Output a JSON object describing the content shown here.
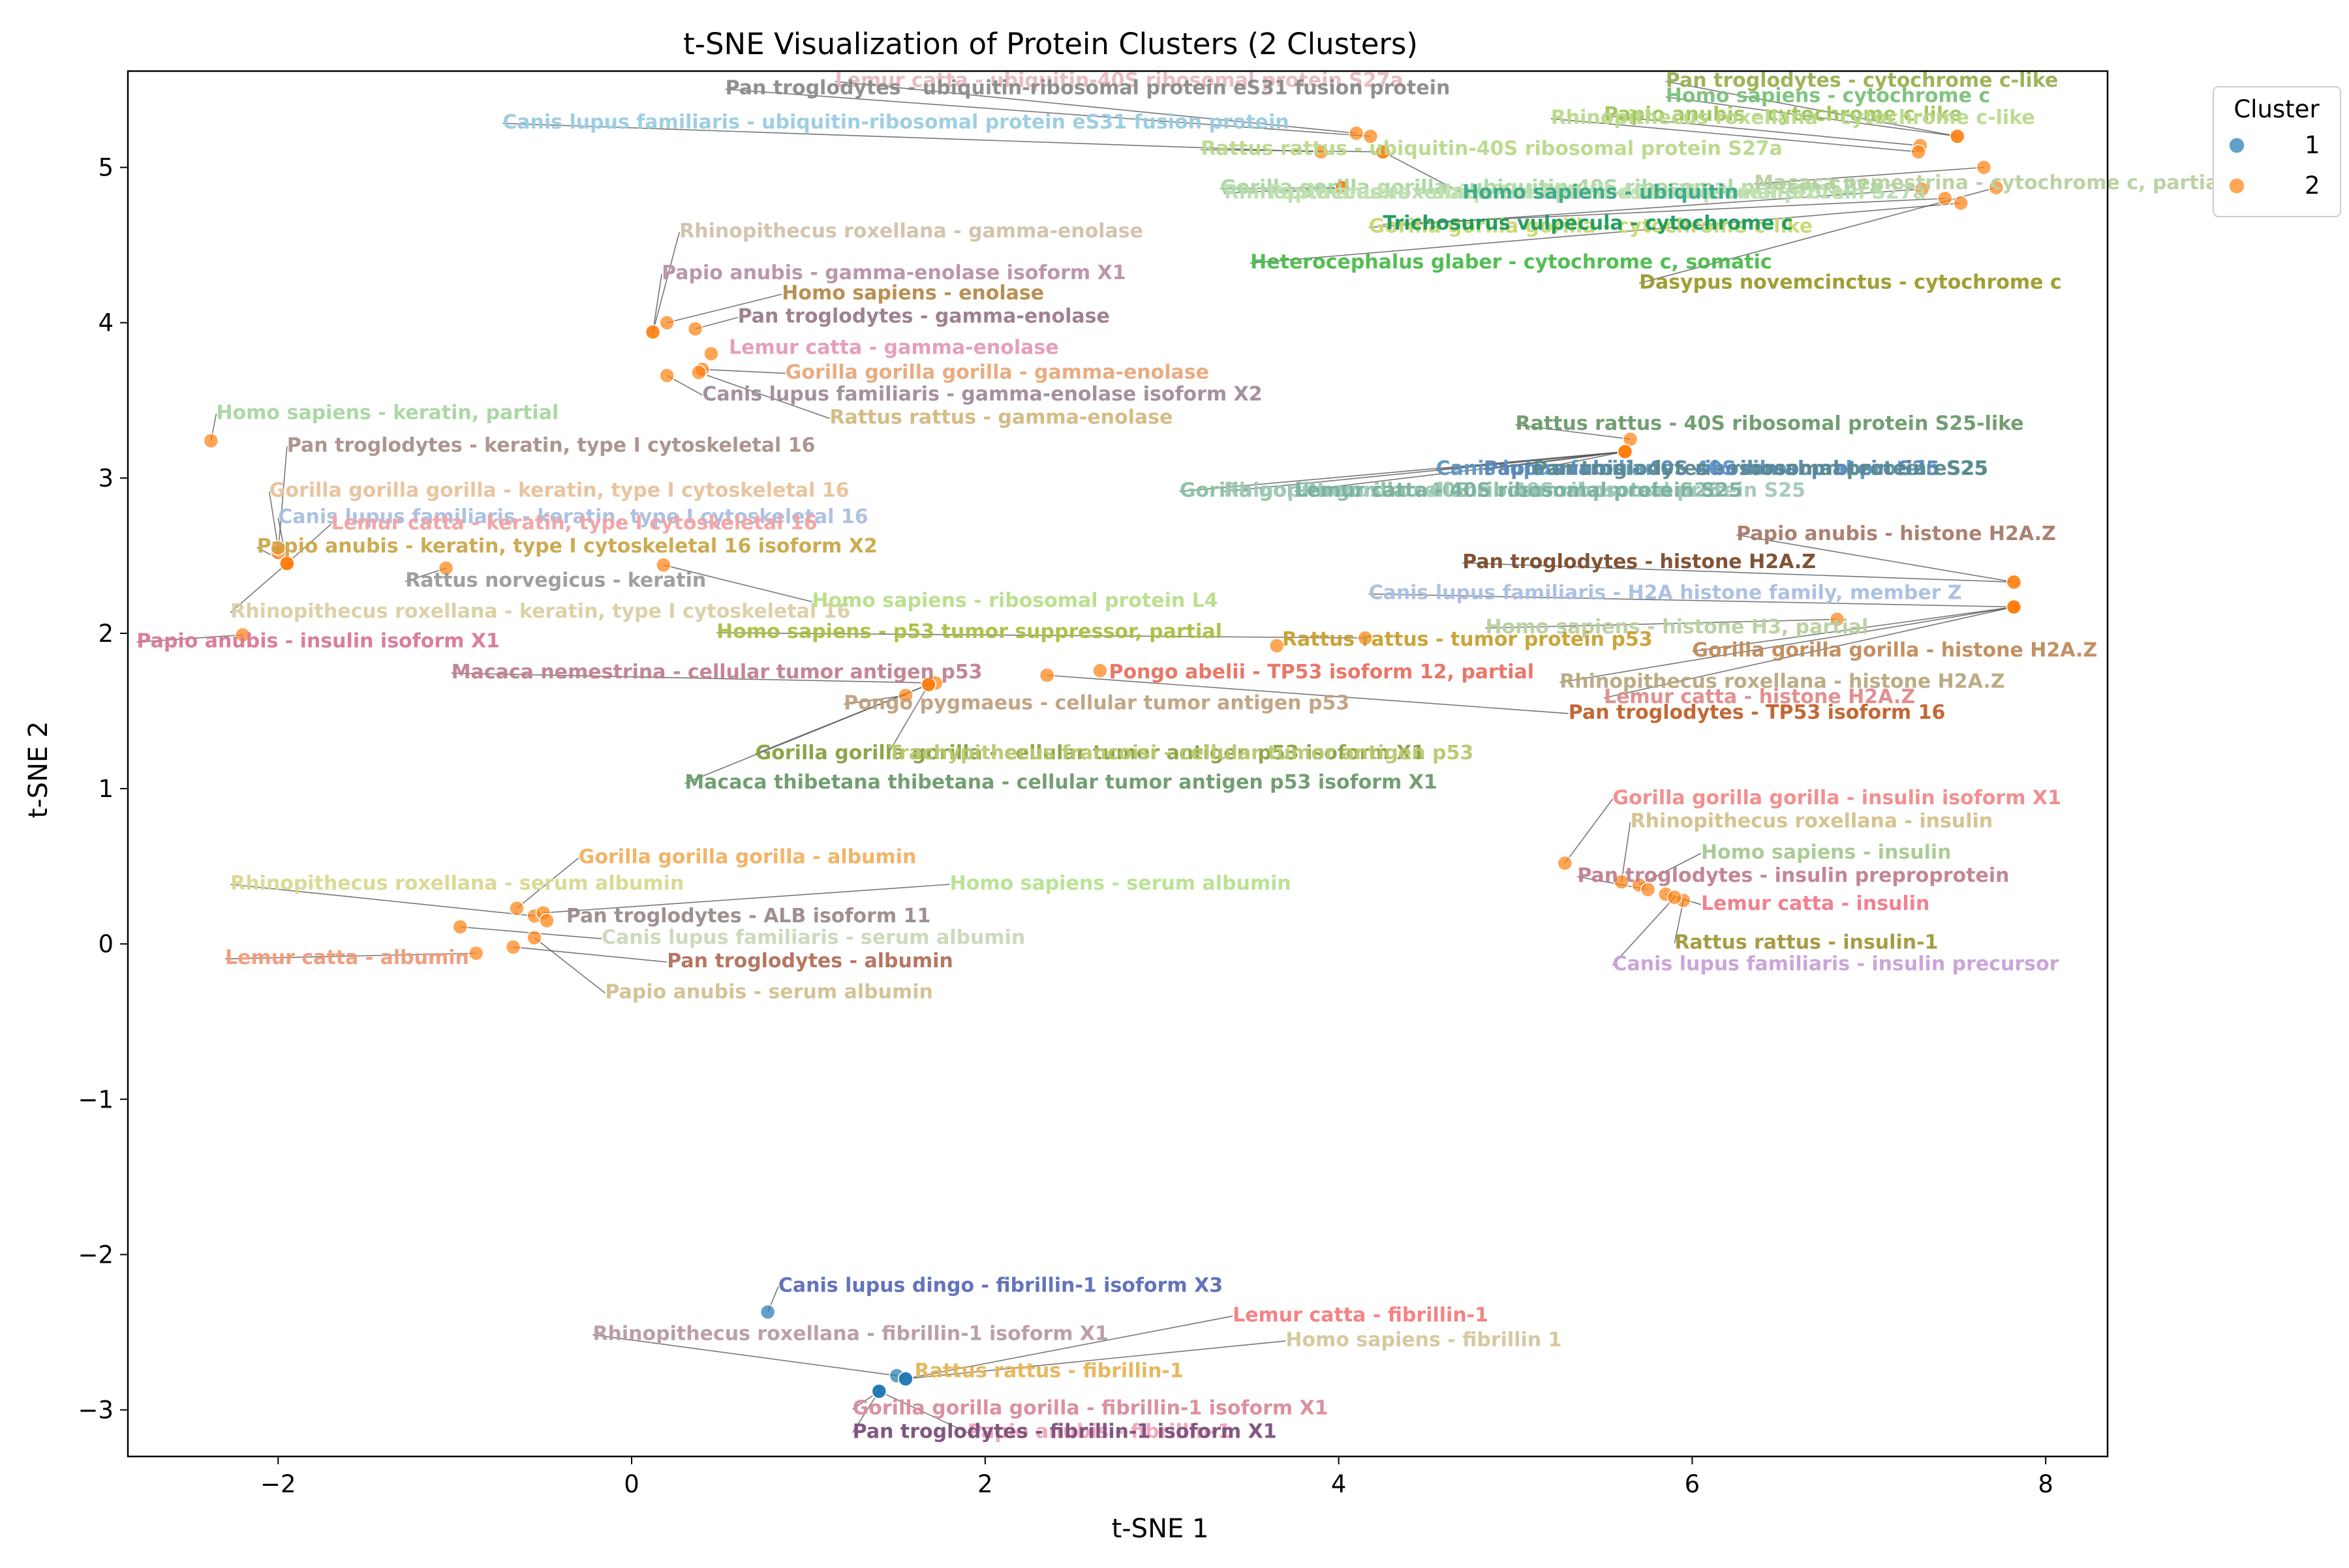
{
  "chart_data": {
    "type": "scatter",
    "title": "t-SNE Visualization of Protein Clusters (2 Clusters)",
    "xlabel": "t-SNE 1",
    "ylabel": "t-SNE 2",
    "xlim": [
      -2.85,
      8.35
    ],
    "ylim": [
      -3.3,
      5.62
    ],
    "xticks": [
      -2,
      0,
      2,
      4,
      6,
      8
    ],
    "yticks": [
      -3,
      -2,
      -1,
      0,
      1,
      2,
      3,
      4,
      5
    ],
    "grid": false,
    "legend": {
      "title": "Cluster",
      "placement": "outside-top-right",
      "entries": [
        {
          "label": "1",
          "color": "#1f77b4"
        },
        {
          "label": "2",
          "color": "#ff7f0e"
        }
      ]
    },
    "colors": {
      "cluster_1": "#1f77b4",
      "cluster_2": "#ff7f0e",
      "leader": "#555555"
    },
    "points": [
      {
        "label": "Canis lupus dingo - fibrillin-1 isoform X3",
        "cluster": 1,
        "x": 0.77,
        "y": -2.37,
        "lx": 0.83,
        "ly": -2.24,
        "color": "#5b6bb8"
      },
      {
        "label": "Rhinopithecus roxellana - fibrillin-1 isoform X1",
        "cluster": 1,
        "x": 1.5,
        "y": -2.78,
        "lx": -0.22,
        "ly": -2.55,
        "color": "#b89aa0"
      },
      {
        "label": "Lemur catta - fibrillin-1",
        "cluster": 1,
        "x": 1.55,
        "y": -2.8,
        "lx": 3.4,
        "ly": -2.43,
        "color": "#f47c7c"
      },
      {
        "label": "Homo sapiens - fibrillin 1",
        "cluster": 1,
        "x": 1.55,
        "y": -2.8,
        "lx": 3.7,
        "ly": -2.59,
        "color": "#d3c79a"
      },
      {
        "label": "Rattus rattus - fibrillin-1",
        "cluster": 1,
        "x": 1.55,
        "y": -2.8,
        "lx": 1.6,
        "ly": -2.79,
        "color": "#e5b556"
      },
      {
        "label": "Gorilla gorilla gorilla - fibrillin-1 isoform X1",
        "cluster": 1,
        "x": 1.4,
        "y": -2.88,
        "lx": 1.25,
        "ly": -3.03,
        "color": "#d98b9a"
      },
      {
        "label": "Papio anubis - fibrillin-1",
        "cluster": 1,
        "x": 1.4,
        "y": -2.88,
        "lx": 1.9,
        "ly": -3.18,
        "color": "#f2a2b8"
      },
      {
        "label": "Pan troglodytes - fibrillin-1 isoform X1",
        "cluster": 1,
        "x": 1.4,
        "y": -2.88,
        "lx": 1.25,
        "ly": -3.18,
        "color": "#7a4e7a"
      },
      {
        "label": "Homo sapiens - keratin, partial",
        "cluster": 2,
        "x": -2.38,
        "y": 3.24,
        "lx": -2.35,
        "ly": 3.38,
        "color": "#a6d6a0"
      },
      {
        "label": "Pan troglodytes - keratin, type I cytoskeletal 16",
        "cluster": 2,
        "x": -2.0,
        "y": 2.52,
        "lx": -1.95,
        "ly": 3.17,
        "color": "#a98f8a"
      },
      {
        "label": "Gorilla gorilla gorilla - keratin, type I cytoskeletal 16",
        "cluster": 2,
        "x": -2.0,
        "y": 2.55,
        "lx": -2.05,
        "ly": 2.88,
        "color": "#e8c19a"
      },
      {
        "label": "Canis lupus familiaris - keratin, type I cytoskeletal 16",
        "cluster": 2,
        "x": -1.95,
        "y": 2.45,
        "lx": -2.0,
        "ly": 2.71,
        "color": "#a9bfe0"
      },
      {
        "label": "Lemur catta - keratin, type I cytoskeletal 16",
        "cluster": 2,
        "x": -1.95,
        "y": 2.45,
        "lx": -1.7,
        "ly": 2.67,
        "color": "#f2a2a2"
      },
      {
        "label": "Papio anubis - keratin, type I cytoskeletal 16 isoform X2",
        "cluster": 2,
        "x": -1.95,
        "y": 2.45,
        "lx": -2.12,
        "ly": 2.52,
        "color": "#c8a84a"
      },
      {
        "label": "Rattus norvegicus - keratin",
        "cluster": 2,
        "x": -1.05,
        "y": 2.42,
        "lx": -1.28,
        "ly": 2.3,
        "color": "#9a9a9a"
      },
      {
        "label": "Rhinopithecus roxellana - keratin, type I cytoskeletal 16",
        "cluster": 2,
        "x": -1.95,
        "y": 2.45,
        "lx": -2.27,
        "ly": 2.1,
        "color": "#d9cfa2"
      },
      {
        "label": "Papio anubis - insulin isoform X1",
        "cluster": 2,
        "x": -2.2,
        "y": 1.99,
        "lx": -2.8,
        "ly": 1.91,
        "color": "#d9769a"
      },
      {
        "label": "Homo sapiens - ribosomal protein L4",
        "cluster": 2,
        "x": 0.18,
        "y": 2.44,
        "lx": 1.02,
        "ly": 2.17,
        "color": "#b7de8a"
      },
      {
        "label": "Rhinopithecus roxellana - gamma-enolase",
        "cluster": 2,
        "x": 0.12,
        "y": 3.94,
        "lx": 0.27,
        "ly": 4.55,
        "color": "#d2c1a8"
      },
      {
        "label": "Papio anubis - gamma-enolase isoform X1",
        "cluster": 2,
        "x": 0.12,
        "y": 3.94,
        "lx": 0.17,
        "ly": 4.28,
        "color": "#b890a8"
      },
      {
        "label": "Homo sapiens - enolase",
        "cluster": 2,
        "x": 0.2,
        "y": 4.0,
        "lx": 0.85,
        "ly": 4.15,
        "color": "#b58a4a"
      },
      {
        "label": "Pan troglodytes - gamma-enolase",
        "cluster": 2,
        "x": 0.36,
        "y": 3.96,
        "lx": 0.6,
        "ly": 4.0,
        "color": "#9a7a8a"
      },
      {
        "label": "Lemur catta - gamma-enolase",
        "cluster": 2,
        "x": 0.45,
        "y": 3.8,
        "lx": 0.55,
        "ly": 3.8,
        "color": "#e39ab8"
      },
      {
        "label": "Gorilla gorilla gorilla - gamma-enolase",
        "cluster": 2,
        "x": 0.4,
        "y": 3.7,
        "lx": 0.87,
        "ly": 3.64,
        "color": "#e8a87a"
      },
      {
        "label": "Canis lupus familiaris - gamma-enolase isoform X2",
        "cluster": 2,
        "x": 0.2,
        "y": 3.66,
        "lx": 0.4,
        "ly": 3.5,
        "color": "#a08a9a"
      },
      {
        "label": "Rattus rattus - gamma-enolase",
        "cluster": 2,
        "x": 0.38,
        "y": 3.68,
        "lx": 1.12,
        "ly": 3.35,
        "color": "#d2b880"
      },
      {
        "label": "Lemur catta - ubiquitin-40S ribosomal protein S27a",
        "cluster": 2,
        "x": 4.1,
        "y": 5.22,
        "lx": 1.15,
        "ly": 5.52,
        "color": "#e8b8c0"
      },
      {
        "label": "Pan troglodytes - ubiquitin-ribosomal protein eS31 fusion protein",
        "cluster": 2,
        "x": 4.18,
        "y": 5.2,
        "lx": 0.53,
        "ly": 5.47,
        "color": "#8a8a8a"
      },
      {
        "label": "Canis lupus familiaris - ubiquitin-ribosomal protein eS31 fusion protein",
        "cluster": 2,
        "x": 3.9,
        "y": 5.1,
        "lx": -0.73,
        "ly": 5.25,
        "color": "#9acbe0"
      },
      {
        "label": "Rattus rattus - ubiquitin-40S ribosomal protein S27a",
        "cluster": 2,
        "x": 4.25,
        "y": 5.1,
        "lx": 3.22,
        "ly": 5.08,
        "color": "#b8d98a"
      },
      {
        "label": "Gorilla gorilla gorilla - ubiquitin-40S ribosomal protein S27a",
        "cluster": 2,
        "x": 4.02,
        "y": 4.87,
        "lx": 3.33,
        "ly": 4.83,
        "color": "#a8d8a0"
      },
      {
        "label": "Rhinopithecus roxellana - ubiquitin-40S ribosomal protein S27a",
        "cluster": 2,
        "x": 4.02,
        "y": 4.87,
        "lx": 3.35,
        "ly": 4.8,
        "color": "#b8dcb0"
      },
      {
        "label": "Papio anubis - ubiquitin-40S ribosomal protein S27a",
        "cluster": 2,
        "x": 4.02,
        "y": 4.87,
        "lx": 3.6,
        "ly": 4.8,
        "color": "#c2e2b0"
      },
      {
        "label": "Homo sapiens - ubiquitin",
        "cluster": 2,
        "x": 4.25,
        "y": 5.1,
        "lx": 4.7,
        "ly": 4.8,
        "color": "#3aa88a"
      },
      {
        "label": "Pan troglodytes - cytochrome c-like",
        "cluster": 2,
        "x": 7.5,
        "y": 5.2,
        "lx": 5.85,
        "ly": 5.52,
        "color": "#9ab050"
      },
      {
        "label": "Homo sapiens - cytochrome c",
        "cluster": 2,
        "x": 7.5,
        "y": 5.2,
        "lx": 5.85,
        "ly": 5.42,
        "color": "#7ac07a"
      },
      {
        "label": "Papio anubis - cytochrome c-like",
        "cluster": 2,
        "x": 7.29,
        "y": 5.14,
        "lx": 5.5,
        "ly": 5.3,
        "color": "#a0c45a"
      },
      {
        "label": "Rhinopithecus roxellana - cytochrome c-like",
        "cluster": 2,
        "x": 7.28,
        "y": 5.1,
        "lx": 5.2,
        "ly": 5.28,
        "color": "#bad98a"
      },
      {
        "label": "Macaca nemestrina - cytochrome c, partial",
        "cluster": 2,
        "x": 7.65,
        "y": 5.0,
        "lx": 6.35,
        "ly": 4.86,
        "color": "#b8d0a0"
      },
      {
        "label": "Gorilla gorilla gorilla - cytochrome c-like",
        "cluster": 2,
        "x": 7.3,
        "y": 4.86,
        "lx": 4.17,
        "ly": 4.58,
        "color": "#c8d870"
      },
      {
        "label": "Trichosurus vulpecula - cytochrome c",
        "cluster": 2,
        "x": 7.43,
        "y": 4.8,
        "lx": 4.25,
        "ly": 4.6,
        "color": "#1a9a5a"
      },
      {
        "label": "Heterocephalus glaber - cytochrome c, somatic",
        "cluster": 2,
        "x": 7.52,
        "y": 4.77,
        "lx": 3.5,
        "ly": 4.35,
        "color": "#4aba4a"
      },
      {
        "label": "Dasypus novemcinctus - cytochrome c",
        "cluster": 2,
        "x": 7.72,
        "y": 4.87,
        "lx": 5.7,
        "ly": 4.22,
        "color": "#9a9a2a"
      },
      {
        "label": "Rattus rattus - 40S ribosomal protein S25-like",
        "cluster": 2,
        "x": 5.65,
        "y": 3.25,
        "lx": 5.0,
        "ly": 3.31,
        "color": "#6a9a6a"
      },
      {
        "label": "Canis lupus familiaris - 40S ribosomal protein S25",
        "cluster": 2,
        "x": 5.62,
        "y": 3.17,
        "lx": 4.55,
        "ly": 3.02,
        "color": "#5a96c6"
      },
      {
        "label": "Papio anubis - 40S ribosomal protein S25",
        "cluster": 2,
        "x": 5.62,
        "y": 3.17,
        "lx": 4.82,
        "ly": 3.02,
        "color": "#5a86b6"
      },
      {
        "label": "Pan troglodytes - ribosomal protein eS25",
        "cluster": 2,
        "x": 5.62,
        "y": 3.17,
        "lx": 5.1,
        "ly": 3.02,
        "color": "#5a8a8a"
      },
      {
        "label": "Gorilla gorilla gorilla - 40S ribosomal protein S25",
        "cluster": 2,
        "x": 5.62,
        "y": 3.17,
        "lx": 3.1,
        "ly": 2.88,
        "color": "#8ac0a0"
      },
      {
        "label": "Rhinopithecus roxellana - 40S ribosomal protein S25",
        "cluster": 2,
        "x": 5.62,
        "y": 3.17,
        "lx": 3.35,
        "ly": 2.88,
        "color": "#a0c8b8"
      },
      {
        "label": "Lemur catta - 40S ribosomal protein S25",
        "cluster": 2,
        "x": 5.62,
        "y": 3.17,
        "lx": 3.75,
        "ly": 2.88,
        "color": "#7ab0a0"
      },
      {
        "label": "Papio anubis - histone H2A.Z",
        "cluster": 2,
        "x": 7.82,
        "y": 2.33,
        "lx": 6.25,
        "ly": 2.6,
        "color": "#a87a6a"
      },
      {
        "label": "Pan troglodytes - histone H2A.Z",
        "cluster": 2,
        "x": 7.82,
        "y": 2.33,
        "lx": 4.7,
        "ly": 2.42,
        "color": "#7a4a2a"
      },
      {
        "label": "Canis lupus familiaris - H2A histone family, member Z",
        "cluster": 2,
        "x": 7.82,
        "y": 2.17,
        "lx": 4.17,
        "ly": 2.22,
        "color": "#a9bfe0"
      },
      {
        "label": "Homo sapiens - histone H3, partial",
        "cluster": 2,
        "x": 6.82,
        "y": 2.09,
        "lx": 4.83,
        "ly": 2.0,
        "color": "#b8d0a0"
      },
      {
        "label": "Gorilla gorilla gorilla - histone H2A.Z",
        "cluster": 2,
        "x": 7.82,
        "y": 2.17,
        "lx": 6.0,
        "ly": 1.85,
        "color": "#c08a5a"
      },
      {
        "label": "Rhinopithecus roxellana - histone H2A.Z",
        "cluster": 2,
        "x": 7.82,
        "y": 2.17,
        "lx": 5.25,
        "ly": 1.65,
        "color": "#b8a880"
      },
      {
        "label": "Lemur catta - histone H2A.Z",
        "cluster": 2,
        "x": 7.82,
        "y": 2.17,
        "lx": 5.5,
        "ly": 1.55,
        "color": "#e08a8a"
      },
      {
        "label": "Pan troglodytes - TP53 isoform 16",
        "cluster": 2,
        "x": 2.35,
        "y": 1.73,
        "lx": 5.3,
        "ly": 1.45,
        "color": "#c0602a"
      },
      {
        "label": "Homo sapiens - p53 tumor suppressor, partial",
        "cluster": 2,
        "x": 4.15,
        "y": 1.97,
        "lx": 0.48,
        "ly": 1.97,
        "color": "#a8c040"
      },
      {
        "label": "Pongo abelii - TP53 isoform 12, partial",
        "cluster": 2,
        "x": 2.65,
        "y": 1.76,
        "lx": 2.7,
        "ly": 1.71,
        "color": "#e87060"
      },
      {
        "label": "Macaca nemestrina - cellular tumor antigen p53",
        "cluster": 2,
        "x": 1.72,
        "y": 1.68,
        "lx": -1.02,
        "ly": 1.71,
        "color": "#c08090"
      },
      {
        "label": "Pongo pygmaeus - cellular tumor antigen p53",
        "cluster": 2,
        "x": 1.55,
        "y": 1.6,
        "lx": 1.2,
        "ly": 1.51,
        "color": "#c0a080"
      },
      {
        "label": "Gorilla gorilla gorilla - cellular tumor antigen p53 isoform X1",
        "cluster": 2,
        "x": 1.68,
        "y": 1.67,
        "lx": 0.7,
        "ly": 1.19,
        "color": "#8aa040"
      },
      {
        "label": "Trachypithecus francoisi - cellular tumor antigen p53",
        "cluster": 2,
        "x": 1.68,
        "y": 1.67,
        "lx": 1.45,
        "ly": 1.19,
        "color": "#b8c870"
      },
      {
        "label": "Macaca thibetana thibetana - cellular tumor antigen p53 isoform X1",
        "cluster": 2,
        "x": 1.68,
        "y": 1.67,
        "lx": 0.3,
        "ly": 1.0,
        "color": "#6a9a6a"
      },
      {
        "label": "Rattus rattus - tumor protein p53",
        "cluster": 2,
        "x": 3.65,
        "y": 1.92,
        "lx": 3.68,
        "ly": 1.92,
        "color": "#c8a030"
      },
      {
        "label": "Gorilla gorilla gorilla - insulin isoform X1",
        "cluster": 2,
        "x": 5.28,
        "y": 0.52,
        "lx": 5.55,
        "ly": 0.9,
        "color": "#f08a8a"
      },
      {
        "label": "Rhinopithecus roxellana - insulin",
        "cluster": 2,
        "x": 5.6,
        "y": 0.4,
        "lx": 5.65,
        "ly": 0.75,
        "color": "#d2c18a"
      },
      {
        "label": "Homo sapiens - insulin",
        "cluster": 2,
        "x": 5.7,
        "y": 0.38,
        "lx": 6.05,
        "ly": 0.55,
        "color": "#a8c890"
      },
      {
        "label": "Pan troglodytes - insulin preproprotein",
        "cluster": 2,
        "x": 5.75,
        "y": 0.35,
        "lx": 5.35,
        "ly": 0.4,
        "color": "#c08090"
      },
      {
        "label": "Lemur catta - insulin",
        "cluster": 2,
        "x": 5.85,
        "y": 0.32,
        "lx": 6.05,
        "ly": 0.22,
        "color": "#f07a8a"
      },
      {
        "label": "Rattus rattus - insulin-1",
        "cluster": 2,
        "x": 5.95,
        "y": 0.28,
        "lx": 5.9,
        "ly": -0.03,
        "color": "#a0983a"
      },
      {
        "label": "Canis lupus familiaris - insulin precursor",
        "cluster": 2,
        "x": 5.9,
        "y": 0.3,
        "lx": 5.55,
        "ly": -0.17,
        "color": "#c8a0d8"
      },
      {
        "label": "Gorilla gorilla gorilla - albumin",
        "cluster": 2,
        "x": -0.65,
        "y": 0.23,
        "lx": -0.3,
        "ly": 0.52,
        "color": "#f0b060"
      },
      {
        "label": "Rhinopithecus roxellana - serum albumin",
        "cluster": 2,
        "x": -0.55,
        "y": 0.18,
        "lx": -2.27,
        "ly": 0.35,
        "color": "#d8d890"
      },
      {
        "label": "Homo sapiens - serum albumin",
        "cluster": 2,
        "x": -0.5,
        "y": 0.2,
        "lx": 1.8,
        "ly": 0.35,
        "color": "#b8e090"
      },
      {
        "label": "Pan troglodytes - ALB isoform 11",
        "cluster": 2,
        "x": -0.48,
        "y": 0.15,
        "lx": -0.37,
        "ly": 0.14,
        "color": "#9a8a8a"
      },
      {
        "label": "Canis lupus familiaris - serum albumin",
        "cluster": 2,
        "x": -0.97,
        "y": 0.11,
        "lx": -0.17,
        "ly": 0.0,
        "color": "#c8d8b8"
      },
      {
        "label": "Lemur catta - albumin",
        "cluster": 2,
        "x": -0.88,
        "y": -0.06,
        "lx": -2.3,
        "ly": -0.13,
        "color": "#f09a7a"
      },
      {
        "label": "Pan troglodytes - albumin",
        "cluster": 2,
        "x": -0.67,
        "y": -0.02,
        "lx": 0.2,
        "ly": -0.15,
        "color": "#b0705a"
      },
      {
        "label": "Papio anubis - serum albumin",
        "cluster": 2,
        "x": -0.55,
        "y": 0.04,
        "lx": -0.15,
        "ly": -0.35,
        "color": "#d2c090"
      }
    ]
  }
}
